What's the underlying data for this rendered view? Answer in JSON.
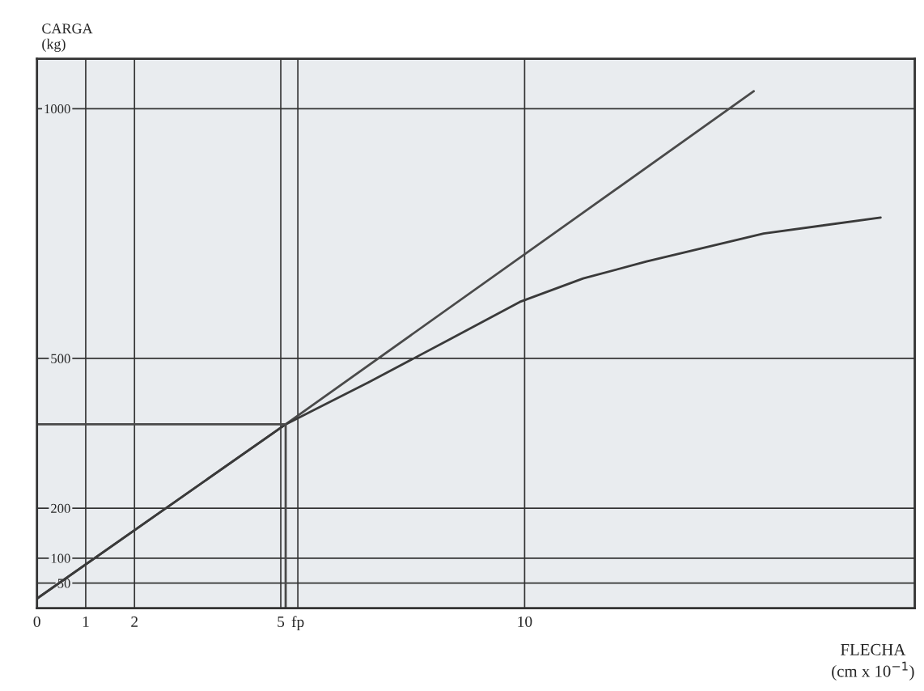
{
  "chart_data": {
    "type": "line",
    "xlabel": "FLECHA\n(cm x 10$^{−1}$)",
    "ylabel": "CARGA\n(kg)",
    "series": [
      {
        "color": "#4a4a4a",
        "x": [
          0,
          5.1,
          14.7
        ],
        "values": [
          19,
          368,
          1035
        ]
      },
      {
        "color": "#3a3a3a",
        "x": [
          0,
          5.1,
          6.8,
          8.5,
          9.9,
          11.2,
          12.5,
          14.9,
          17.3
        ],
        "values": [
          19,
          368,
          452,
          540,
          613,
          660,
          694,
          750,
          782
        ]
      },
      {
        "color": "#4a4a4a",
        "x": [
          0,
          5.1
        ],
        "values": [
          368,
          368
        ]
      },
      {
        "color": "#4a4a4a",
        "x": [
          5.1,
          5.1
        ],
        "values": [
          0,
          368
        ]
      }
    ],
    "xlim": [
      0,
      18
    ],
    "ylim": [
      0,
      1100
    ],
    "xticks": [
      0,
      1,
      2,
      5,
      {
        "value": 5.35,
        "label": "fp"
      },
      10
    ],
    "yticks": [
      50,
      100,
      200,
      500,
      1000
    ],
    "grid": true,
    "marker": "none",
    "line_style": "solid"
  }
}
